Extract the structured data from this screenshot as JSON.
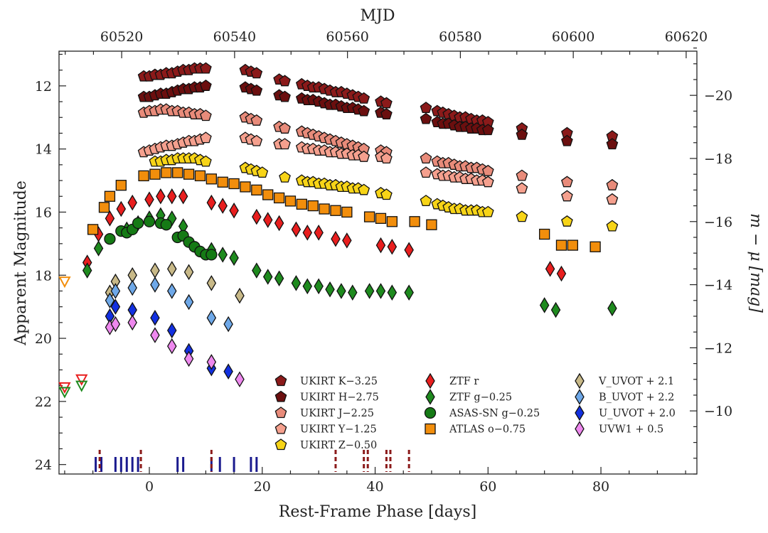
{
  "chart_data": {
    "type": "scatter",
    "title": "",
    "xlabel": "Rest-Frame Phase [days]",
    "ylabel": "Apparent Magnitude",
    "top_xlabel": "MJD",
    "right_ylabel": "m − μ [mag]",
    "xlim": [
      -16,
      97
    ],
    "ylim": [
      24.3,
      10.9
    ],
    "x_ticks": [
      0,
      20,
      40,
      60,
      80
    ],
    "y_ticks": [
      12,
      14,
      16,
      18,
      20,
      22,
      24
    ],
    "top_ticks": [
      "60520",
      "60540",
      "60560",
      "60580",
      "60600",
      "60620"
    ],
    "top_tick_phase": [
      -4.9,
      15.1,
      35.1,
      55.1,
      75.1,
      95.1
    ],
    "right_ticks": [
      "−20",
      "−18",
      "−16",
      "−14",
      "−12",
      "−10"
    ],
    "right_tick_mag": [
      12.3,
      14.3,
      16.3,
      18.3,
      20.3,
      22.3
    ],
    "legend": {
      "placement": "lower-center-right",
      "columns": [
        [
          "UKIRT K−3.25",
          "UKIRT H−2.75",
          "UKIRT J−2.25",
          "UKIRT Y−1.25",
          "UKIRT Z−0.50"
        ],
        [
          "ZTF r",
          "ZTF g−0.25",
          "ASAS-SN g−0.25",
          "ATLAS o−0.75"
        ],
        [
          "V_UVOT + 2.1",
          "B_UVOT + 2.2",
          "U_UVOT + 2.0",
          "UVW1 + 0.5"
        ]
      ]
    },
    "series": [
      {
        "name": "UKIRT K−3.25",
        "marker": "pentagon",
        "color": "#8b1a1a",
        "x": [
          -1,
          0,
          1,
          2,
          3,
          4,
          5,
          6,
          7,
          8,
          9,
          10,
          17,
          18,
          19,
          23,
          24,
          27,
          28,
          29,
          30,
          31,
          32,
          33,
          34,
          35,
          36,
          37,
          38,
          41,
          42,
          49,
          51,
          52,
          53,
          54,
          55,
          56,
          57,
          58,
          59,
          60,
          66,
          74,
          82
        ],
        "y": [
          11.7,
          11.7,
          11.65,
          11.65,
          11.6,
          11.6,
          11.55,
          11.5,
          11.5,
          11.45,
          11.45,
          11.45,
          11.5,
          11.55,
          11.6,
          11.8,
          11.85,
          11.95,
          12.0,
          12.05,
          12.05,
          12.1,
          12.15,
          12.2,
          12.2,
          12.25,
          12.3,
          12.35,
          12.4,
          12.5,
          12.55,
          12.7,
          12.8,
          12.85,
          12.9,
          12.95,
          13.0,
          13.0,
          13.05,
          13.1,
          13.1,
          13.15,
          13.35,
          13.5,
          13.6
        ]
      },
      {
        "name": "UKIRT H−2.75",
        "marker": "pentagon",
        "color": "#6b0f0f",
        "x": [
          -1,
          0,
          1,
          2,
          3,
          4,
          5,
          6,
          7,
          8,
          9,
          10,
          17,
          18,
          19,
          23,
          24,
          27,
          28,
          29,
          30,
          31,
          32,
          33,
          34,
          35,
          36,
          37,
          38,
          41,
          42,
          49,
          51,
          52,
          53,
          54,
          55,
          56,
          57,
          58,
          59,
          60,
          66,
          74,
          82
        ],
        "y": [
          12.35,
          12.35,
          12.3,
          12.25,
          12.25,
          12.2,
          12.15,
          12.1,
          12.1,
          12.05,
          12.05,
          12.0,
          12.05,
          12.1,
          12.15,
          12.3,
          12.35,
          12.4,
          12.45,
          12.45,
          12.5,
          12.55,
          12.6,
          12.6,
          12.65,
          12.7,
          12.7,
          12.75,
          12.8,
          12.85,
          12.9,
          13.05,
          13.15,
          13.2,
          13.2,
          13.25,
          13.3,
          13.3,
          13.35,
          13.35,
          13.4,
          13.4,
          13.55,
          13.75,
          13.85
        ]
      },
      {
        "name": "UKIRT J−2.25",
        "marker": "pentagon",
        "color": "#e88b7a",
        "x": [
          -1,
          0,
          1,
          2,
          3,
          4,
          5,
          6,
          7,
          8,
          9,
          10,
          17,
          18,
          19,
          23,
          24,
          27,
          28,
          29,
          30,
          31,
          32,
          33,
          34,
          35,
          36,
          37,
          38,
          41,
          42,
          49,
          51,
          52,
          53,
          54,
          55,
          56,
          57,
          58,
          59,
          60,
          66,
          74,
          82
        ],
        "y": [
          12.85,
          12.8,
          12.8,
          12.75,
          12.75,
          12.8,
          12.8,
          12.85,
          12.85,
          12.9,
          12.9,
          12.95,
          13.0,
          13.05,
          13.1,
          13.3,
          13.35,
          13.45,
          13.5,
          13.55,
          13.6,
          13.65,
          13.7,
          13.75,
          13.8,
          13.85,
          13.9,
          13.95,
          14.0,
          14.05,
          14.1,
          14.3,
          14.4,
          14.45,
          14.45,
          14.5,
          14.55,
          14.55,
          14.6,
          14.6,
          14.65,
          14.7,
          14.85,
          15.05,
          15.15
        ]
      },
      {
        "name": "UKIRT Y−1.25",
        "marker": "pentagon",
        "color": "#f5a08e",
        "x": [
          -1,
          0,
          1,
          2,
          3,
          4,
          5,
          6,
          7,
          8,
          9,
          10,
          17,
          18,
          19,
          23,
          24,
          27,
          28,
          29,
          30,
          31,
          32,
          33,
          34,
          35,
          36,
          37,
          38,
          41,
          42,
          49,
          51,
          52,
          53,
          54,
          55,
          56,
          57,
          58,
          59,
          60,
          66,
          74,
          82
        ],
        "y": [
          14.1,
          14.05,
          14.0,
          13.95,
          13.9,
          13.9,
          13.85,
          13.8,
          13.75,
          13.75,
          13.7,
          13.65,
          13.65,
          13.7,
          13.75,
          13.85,
          13.85,
          13.95,
          14.0,
          14.0,
          14.05,
          14.05,
          14.1,
          14.1,
          14.15,
          14.15,
          14.2,
          14.2,
          14.25,
          14.25,
          14.3,
          14.75,
          14.8,
          14.85,
          14.85,
          14.9,
          14.9,
          14.95,
          14.95,
          15.0,
          15.0,
          15.05,
          15.25,
          15.5,
          15.6
        ]
      },
      {
        "name": "UKIRT Z−0.50",
        "marker": "pentagon",
        "color": "#f7d417",
        "x": [
          1,
          2,
          3,
          4,
          5,
          6,
          7,
          8,
          9,
          10,
          17,
          18,
          19,
          20,
          24,
          27,
          28,
          29,
          30,
          31,
          32,
          33,
          34,
          35,
          36,
          37,
          38,
          41,
          42,
          49,
          51,
          52,
          53,
          54,
          55,
          56,
          57,
          58,
          59,
          60,
          66,
          74,
          82
        ],
        "y": [
          14.4,
          14.4,
          14.35,
          14.35,
          14.3,
          14.3,
          14.3,
          14.3,
          14.35,
          14.4,
          14.6,
          14.65,
          14.7,
          14.75,
          14.9,
          15.0,
          15.05,
          15.05,
          15.1,
          15.1,
          15.15,
          15.15,
          15.2,
          15.2,
          15.25,
          15.25,
          15.3,
          15.4,
          15.45,
          15.65,
          15.75,
          15.8,
          15.85,
          15.9,
          15.9,
          15.95,
          15.95,
          15.95,
          16.0,
          16.0,
          16.15,
          16.3,
          16.45
        ]
      },
      {
        "name": "ZTF r",
        "marker": "diamond",
        "color": "#e81e1e",
        "x": [
          -11,
          -9,
          -7,
          -5,
          -3,
          0,
          2,
          4,
          6,
          11,
          13,
          15,
          19,
          21,
          23,
          26,
          28,
          30,
          33,
          35,
          41,
          43,
          46,
          71,
          73
        ],
        "y": [
          17.6,
          16.7,
          16.2,
          15.9,
          15.7,
          15.6,
          15.5,
          15.5,
          15.5,
          15.7,
          15.8,
          15.95,
          16.15,
          16.25,
          16.35,
          16.55,
          16.65,
          16.65,
          16.85,
          16.9,
          17.05,
          17.1,
          17.2,
          17.8,
          17.95
        ]
      },
      {
        "name": "ZTF g−0.25",
        "marker": "diamond",
        "color": "#1e8a1e",
        "x": [
          -11,
          -9,
          -4,
          -2,
          0,
          2,
          4,
          6,
          11,
          13,
          15,
          19,
          21,
          23,
          26,
          28,
          30,
          32,
          34,
          36,
          39,
          41,
          43,
          46,
          70,
          72,
          82
        ],
        "y": [
          17.85,
          17.15,
          16.55,
          16.35,
          16.2,
          16.1,
          16.2,
          16.45,
          17.2,
          17.35,
          17.45,
          17.85,
          18.05,
          18.1,
          18.25,
          18.35,
          18.35,
          18.45,
          18.5,
          18.55,
          18.5,
          18.5,
          18.55,
          18.55,
          18.95,
          19.1,
          19.05
        ]
      },
      {
        "name": "ASAS-SN g−0.25",
        "marker": "circle",
        "color": "#157a15",
        "x": [
          -7,
          -5,
          -4,
          -3,
          -2,
          0,
          2,
          3,
          5,
          6,
          7,
          8,
          9,
          10,
          11
        ],
        "y": [
          16.85,
          16.6,
          16.65,
          16.55,
          16.35,
          16.3,
          16.35,
          16.4,
          16.8,
          16.75,
          16.95,
          17.1,
          17.25,
          17.35,
          17.35
        ]
      },
      {
        "name": "ATLAS o−0.75",
        "marker": "square",
        "color": "#f28e0c",
        "x": [
          -10,
          -8,
          -7,
          -5,
          -1,
          1,
          3,
          5,
          7,
          9,
          11,
          13,
          15,
          17,
          19,
          21,
          23,
          25,
          27,
          29,
          31,
          33,
          35,
          39,
          41,
          43,
          47,
          50,
          70,
          73,
          75,
          79
        ],
        "y": [
          16.55,
          15.85,
          15.5,
          15.15,
          14.85,
          14.8,
          14.75,
          14.75,
          14.8,
          14.85,
          14.95,
          15.05,
          15.1,
          15.2,
          15.3,
          15.45,
          15.55,
          15.65,
          15.75,
          15.8,
          15.9,
          15.95,
          16.0,
          16.15,
          16.2,
          16.3,
          16.3,
          16.4,
          16.7,
          17.05,
          17.05,
          17.1
        ]
      },
      {
        "name": "V_UVOT + 2.1",
        "marker": "diamond",
        "color": "#c8b988",
        "x": [
          -7,
          -6,
          -3,
          1,
          4,
          7,
          11,
          16
        ],
        "y": [
          18.55,
          18.2,
          18.0,
          17.85,
          17.8,
          17.9,
          18.25,
          18.65
        ]
      },
      {
        "name": "B_UVOT + 2.2",
        "marker": "diamond",
        "color": "#6ea8e8",
        "x": [
          -7,
          -6,
          -3,
          1,
          4,
          7,
          11,
          14
        ],
        "y": [
          18.8,
          18.5,
          18.4,
          18.3,
          18.5,
          18.85,
          19.35,
          19.55
        ]
      },
      {
        "name": "U_UVOT + 2.0",
        "marker": "diamond",
        "color": "#1230e0",
        "x": [
          -7,
          -6,
          -3,
          1,
          4,
          7,
          11,
          14
        ],
        "y": [
          19.3,
          19.0,
          19.1,
          19.35,
          19.75,
          20.4,
          20.95,
          21.05
        ]
      },
      {
        "name": "UVW1 + 0.5",
        "marker": "diamond",
        "color": "#ee88ee",
        "x": [
          -7,
          -6,
          -3,
          1,
          4,
          7,
          11,
          16
        ],
        "y": [
          19.65,
          19.55,
          19.5,
          19.9,
          20.25,
          20.65,
          20.75,
          21.3
        ]
      },
      {
        "name": "upper limits orange",
        "marker": "triangle-down-open",
        "color": "#f28e0c",
        "x": [
          -15
        ],
        "y": [
          18.2
        ]
      },
      {
        "name": "upper limits red",
        "marker": "triangle-down-open",
        "color": "#e81e1e",
        "x": [
          -15,
          -12
        ],
        "y": [
          21.55,
          21.3
        ]
      },
      {
        "name": "upper limits green",
        "marker": "triangle-down-open",
        "color": "#1e8a1e",
        "x": [
          -15,
          -12
        ],
        "y": [
          21.7,
          21.5
        ]
      }
    ],
    "epoch_ticks": {
      "blue": {
        "color": "#1a1a8e",
        "x": [
          -9.5,
          -8.5,
          -6,
          -5,
          -4,
          -3,
          -2,
          5,
          6,
          11,
          12.5,
          15,
          18,
          19
        ]
      },
      "darkred": {
        "color": "#8b1a1a",
        "x": [
          -8.8,
          -1.5,
          11,
          33,
          38,
          38.7,
          42,
          42.7,
          46
        ]
      }
    }
  }
}
